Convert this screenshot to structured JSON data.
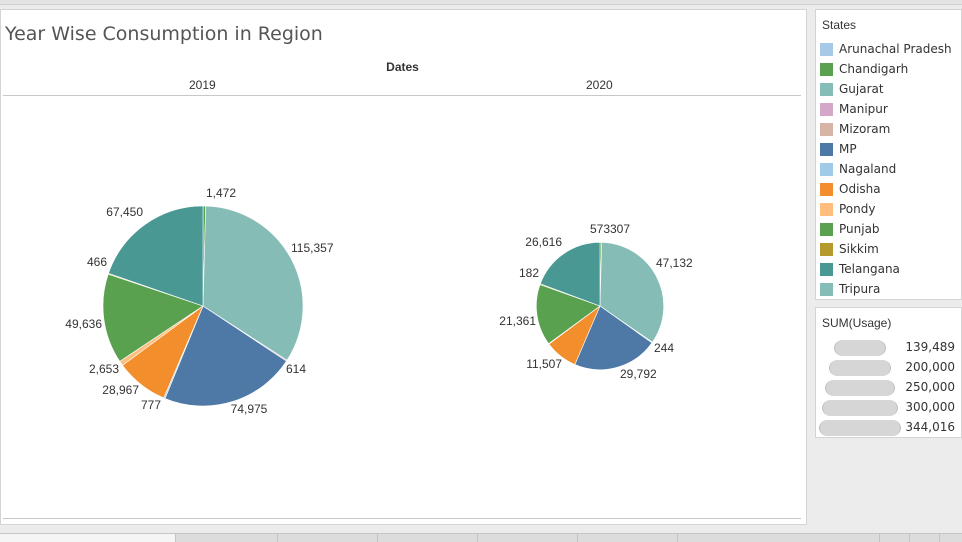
{
  "title": "Year Wise Consumption in Region",
  "columns_header": "Dates",
  "legend": {
    "title": "States",
    "items": [
      {
        "label": "Arunachal Pradesh",
        "color": "#a5c9e6"
      },
      {
        "label": "Chandigarh",
        "color": "#59a14f"
      },
      {
        "label": "Gujarat",
        "color": "#86bcb6"
      },
      {
        "label": "Manipur",
        "color": "#d4a6c8"
      },
      {
        "label": "Mizoram",
        "color": "#d7b5a6"
      },
      {
        "label": "MP",
        "color": "#4e79a7"
      },
      {
        "label": "Nagaland",
        "color": "#a0cbe8"
      },
      {
        "label": "Odisha",
        "color": "#f28e2b"
      },
      {
        "label": "Pondy",
        "color": "#ffbe7d"
      },
      {
        "label": "Punjab",
        "color": "#59a14f"
      },
      {
        "label": "Sikkim",
        "color": "#b6992d"
      },
      {
        "label": "Telangana",
        "color": "#499894"
      },
      {
        "label": "Tripura",
        "color": "#86bcb6"
      }
    ]
  },
  "size_legend": {
    "title": "SUM(Usage)",
    "values": [
      "139,489",
      "200,000",
      "250,000",
      "300,000",
      "344,016"
    ],
    "numbers": [
      139489,
      200000,
      250000,
      300000,
      344016
    ]
  },
  "chart_data": [
    {
      "type": "pie",
      "title": "2019",
      "total_scale": 344016,
      "slices": [
        {
          "state": "Chandigarh",
          "value": 1472,
          "label": "1,472",
          "color": "#59a14f"
        },
        {
          "state": "Gujarat",
          "value": 115357,
          "label": "115,357",
          "color": "#86bcb6"
        },
        {
          "state": "Manipur",
          "value": 614,
          "label": "614",
          "color": "#d4a6c8"
        },
        {
          "state": "MP",
          "value": 74975,
          "label": "74,975",
          "color": "#4e79a7"
        },
        {
          "state": "Nagaland",
          "value": 777,
          "label": "777",
          "color": "#a0cbe8"
        },
        {
          "state": "Odisha",
          "value": 28967,
          "label": "28,967",
          "color": "#f28e2b"
        },
        {
          "state": "Pondy",
          "value": 2653,
          "label": "2,653",
          "color": "#ffbe7d"
        },
        {
          "state": "Punjab",
          "value": 49636,
          "label": "49,636",
          "color": "#59a14f"
        },
        {
          "state": "Sikkim",
          "value": 466,
          "label": "466",
          "color": "#b6992d"
        },
        {
          "state": "Telangana",
          "value": 67450,
          "label": "67,450",
          "color": "#499894"
        }
      ]
    },
    {
      "type": "pie",
      "title": "2020",
      "total_scale": 139489,
      "slices": [
        {
          "state": "Chandigarh",
          "value": 573,
          "label": "573",
          "color": "#59a14f"
        },
        {
          "state": "Gujarat",
          "value": 47132,
          "label": "47,132",
          "color": "#86bcb6"
        },
        {
          "state": "Manipur",
          "value": 244,
          "label": "244",
          "color": "#d4a6c8"
        },
        {
          "state": "MP",
          "value": 29792,
          "label": "29,792",
          "color": "#4e79a7"
        },
        {
          "state": "Odisha",
          "value": 11507,
          "label": "11,507",
          "color": "#f28e2b"
        },
        {
          "state": "Pondy",
          "value": 182,
          "label": "182",
          "color": "#ffbe7d"
        },
        {
          "state": "Punjab",
          "value": 21361,
          "label": "21,361",
          "color": "#59a14f"
        },
        {
          "state": "Sikkim",
          "value": 307,
          "label": "307",
          "color": "#b6992d"
        },
        {
          "state": "Telangana",
          "value": 26616,
          "label": "26,616",
          "color": "#499894"
        }
      ]
    }
  ]
}
